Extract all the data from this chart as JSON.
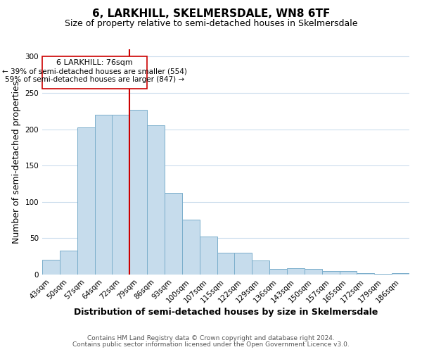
{
  "title": "6, LARKHILL, SKELMERSDALE, WN8 6TF",
  "subtitle": "Size of property relative to semi-detached houses in Skelmersdale",
  "xlabel": "Distribution of semi-detached houses by size in Skelmersdale",
  "ylabel": "Number of semi-detached properties",
  "categories": [
    "43sqm",
    "50sqm",
    "57sqm",
    "64sqm",
    "72sqm",
    "79sqm",
    "86sqm",
    "93sqm",
    "100sqm",
    "107sqm",
    "115sqm",
    "122sqm",
    "129sqm",
    "136sqm",
    "143sqm",
    "150sqm",
    "157sqm",
    "165sqm",
    "172sqm",
    "179sqm",
    "186sqm"
  ],
  "values": [
    20,
    33,
    202,
    220,
    220,
    227,
    205,
    112,
    76,
    52,
    30,
    30,
    19,
    8,
    9,
    8,
    5,
    5,
    2,
    1,
    2
  ],
  "bar_color": "#c6dcec",
  "bar_edge_color": "#7aaecb",
  "vline_color": "#cc0000",
  "property_line_label": "6 LARKHILL: 76sqm",
  "smaller_pct": 39,
  "smaller_count": 554,
  "larger_pct": 59,
  "larger_count": 847,
  "ylim": [
    0,
    310
  ],
  "yticks": [
    0,
    50,
    100,
    150,
    200,
    250,
    300
  ],
  "footer1": "Contains HM Land Registry data © Crown copyright and database right 2024.",
  "footer2": "Contains public sector information licensed under the Open Government Licence v3.0.",
  "background_color": "#ffffff",
  "grid_color": "#ccdded",
  "title_fontsize": 11,
  "subtitle_fontsize": 9,
  "axis_label_fontsize": 9,
  "tick_fontsize": 7.5,
  "footer_fontsize": 6.5,
  "annotation_fontsize_title": 8,
  "annotation_fontsize_body": 7.5
}
